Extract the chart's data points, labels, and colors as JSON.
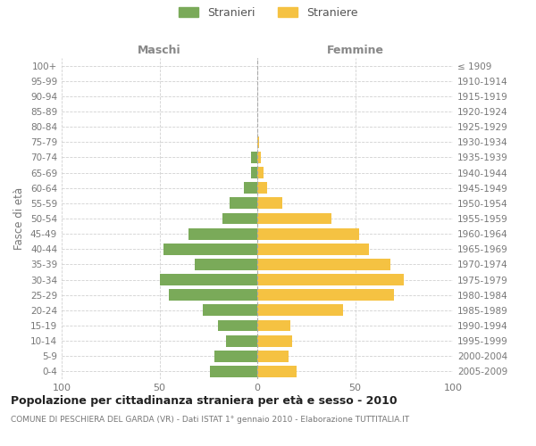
{
  "age_groups": [
    "100+",
    "95-99",
    "90-94",
    "85-89",
    "80-84",
    "75-79",
    "70-74",
    "65-69",
    "60-64",
    "55-59",
    "50-54",
    "45-49",
    "40-44",
    "35-39",
    "30-34",
    "25-29",
    "20-24",
    "15-19",
    "10-14",
    "5-9",
    "0-4"
  ],
  "birth_years": [
    "≤ 1909",
    "1910-1914",
    "1915-1919",
    "1920-1924",
    "1925-1929",
    "1930-1934",
    "1935-1939",
    "1940-1944",
    "1945-1949",
    "1950-1954",
    "1955-1959",
    "1960-1964",
    "1965-1969",
    "1970-1974",
    "1975-1979",
    "1980-1984",
    "1985-1989",
    "1990-1994",
    "1995-1999",
    "2000-2004",
    "2005-2009"
  ],
  "males": [
    0,
    0,
    0,
    0,
    0,
    0,
    3,
    3,
    7,
    14,
    18,
    35,
    48,
    32,
    50,
    45,
    28,
    20,
    16,
    22,
    24
  ],
  "females": [
    0,
    0,
    0,
    0,
    0,
    1,
    2,
    3,
    5,
    13,
    38,
    52,
    57,
    68,
    75,
    70,
    44,
    17,
    18,
    16,
    20
  ],
  "male_color": "#7aaa59",
  "female_color": "#f5c242",
  "background_color": "#ffffff",
  "grid_color": "#cccccc",
  "title": "Popolazione per cittadinanza straniera per età e sesso - 2010",
  "subtitle": "COMUNE DI PESCHIERA DEL GARDA (VR) - Dati ISTAT 1° gennaio 2010 - Elaborazione TUTTITALIA.IT",
  "xlabel_left": "Maschi",
  "xlabel_right": "Femmine",
  "ylabel_left": "Fasce di età",
  "xlim": 100,
  "legend_stranieri": "Stranieri",
  "legend_straniere": "Straniere"
}
